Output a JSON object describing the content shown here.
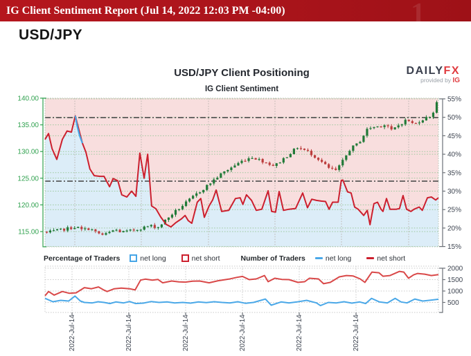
{
  "banner": {
    "title": "IG Client Sentiment Report (Jul 14, 2022 12:03 PM -04:00)",
    "watermark": "1",
    "bg_color": "#aa141b"
  },
  "instrument": "USD/JPY",
  "logo": {
    "daily": "DAILY",
    "fx": "FX",
    "provided_by": "provided by",
    "ig": "IG"
  },
  "legend": {
    "group1_label": "Percentage of Traders",
    "pct_net_long": "net long",
    "pct_net_short": "net short",
    "group2_label": "Number of Traders",
    "num_net_long": "net long",
    "num_net_short": "net short"
  },
  "colors": {
    "net_short": "#cc1f2d",
    "net_long": "#45a5e6",
    "pink_fill": "#f8dede",
    "blue_fill": "#dcedf8",
    "candle_up": "#217a38",
    "candle_down": "#bc3d3d",
    "grid_green": "#9bc89b",
    "grid_gray": "#c9c9c9",
    "vgrid": "#b9b3ad",
    "dashdot": "#4d4d4d",
    "left_axis": "#2fa14e",
    "axis_text": "#3d4450",
    "count_short": "#d94848",
    "count_long": "#4aa8e8"
  },
  "chart_data": {
    "main": {
      "type": "candlestick+line",
      "title": "USD/JPY Client Positioning",
      "subtitle": "IG Client Sentiment",
      "left_axis": {
        "labels": [
          "140.00",
          "135.00",
          "130.00",
          "125.00",
          "120.00",
          "115.00"
        ],
        "values": [
          140,
          135,
          130,
          125,
          120,
          115
        ]
      },
      "right_axis": {
        "labels": [
          "55%",
          "50%",
          "45%",
          "40%",
          "35%",
          "30%",
          "25%",
          "20%",
          "15%"
        ],
        "values": [
          55,
          50,
          45,
          40,
          35,
          30,
          25,
          20,
          15
        ]
      },
      "marker_lines_pct": [
        49.9,
        32.7
      ],
      "candle_count": 113,
      "price_anchors": [
        [
          0,
          114.8
        ],
        [
          0.03,
          115.2
        ],
        [
          0.055,
          115.6
        ],
        [
          0.076,
          115.9
        ],
        [
          0.09,
          115.3
        ],
        [
          0.11,
          115.6
        ],
        [
          0.125,
          114.9
        ],
        [
          0.145,
          114.3
        ],
        [
          0.16,
          114.8
        ],
        [
          0.175,
          115.4
        ],
        [
          0.19,
          114.9
        ],
        [
          0.205,
          115.0
        ],
        [
          0.225,
          115.3
        ],
        [
          0.245,
          115.7
        ],
        [
          0.265,
          116.1
        ],
        [
          0.285,
          115.8
        ],
        [
          0.3,
          116.8
        ],
        [
          0.32,
          118.2
        ],
        [
          0.349,
          119.9
        ],
        [
          0.38,
          121.8
        ],
        [
          0.408,
          123.4
        ],
        [
          0.44,
          125.4
        ],
        [
          0.466,
          126.7
        ],
        [
          0.5,
          128.2
        ],
        [
          0.525,
          129.0
        ],
        [
          0.554,
          128.2
        ],
        [
          0.584,
          127.3
        ],
        [
          0.613,
          129.0
        ],
        [
          0.643,
          130.8
        ],
        [
          0.672,
          129.9
        ],
        [
          0.7,
          128.4
        ],
        [
          0.722,
          126.9
        ],
        [
          0.743,
          126.4
        ],
        [
          0.76,
          128.3
        ],
        [
          0.778,
          130.5
        ],
        [
          0.8,
          131.6
        ],
        [
          0.824,
          134.4
        ],
        [
          0.849,
          134.7
        ],
        [
          0.871,
          135.1
        ],
        [
          0.884,
          133.9
        ],
        [
          0.907,
          135.2
        ],
        [
          0.924,
          136.0
        ],
        [
          0.942,
          135.0
        ],
        [
          0.959,
          135.9
        ],
        [
          0.977,
          136.4
        ],
        [
          0.989,
          137.0
        ],
        [
          1,
          139.0
        ]
      ],
      "net_short_pct": [
        [
          0,
          44.0
        ],
        [
          0.009,
          45.6
        ],
        [
          0.018,
          41.5
        ],
        [
          0.03,
          38.6
        ],
        [
          0.044,
          44.0
        ],
        [
          0.056,
          46.3
        ],
        [
          0.067,
          46.0
        ],
        [
          0.077,
          50.4
        ],
        [
          0.095,
          43.0
        ],
        [
          0.104,
          40.5
        ],
        [
          0.114,
          36.0
        ],
        [
          0.125,
          34.2
        ],
        [
          0.14,
          34.0
        ],
        [
          0.15,
          34.0
        ],
        [
          0.164,
          31.2
        ],
        [
          0.173,
          33.4
        ],
        [
          0.185,
          32.8
        ],
        [
          0.195,
          29.0
        ],
        [
          0.208,
          28.4
        ],
        [
          0.22,
          30.0
        ],
        [
          0.231,
          28.6
        ],
        [
          0.241,
          40.3
        ],
        [
          0.252,
          33.5
        ],
        [
          0.261,
          40.0
        ],
        [
          0.271,
          26.0
        ],
        [
          0.282,
          25.2
        ],
        [
          0.294,
          23.0
        ],
        [
          0.308,
          21.0
        ],
        [
          0.32,
          20.3
        ],
        [
          0.333,
          21.5
        ],
        [
          0.347,
          22.5
        ],
        [
          0.356,
          23.4
        ],
        [
          0.364,
          22.0
        ],
        [
          0.373,
          21.3
        ],
        [
          0.387,
          27.0
        ],
        [
          0.396,
          28.0
        ],
        [
          0.405,
          22.9
        ],
        [
          0.417,
          26.0
        ],
        [
          0.426,
          27.6
        ],
        [
          0.435,
          30.3
        ],
        [
          0.449,
          24.5
        ],
        [
          0.467,
          24.8
        ],
        [
          0.484,
          28.0
        ],
        [
          0.496,
          28.2
        ],
        [
          0.503,
          26.4
        ],
        [
          0.512,
          29.0
        ],
        [
          0.525,
          27.5
        ],
        [
          0.537,
          24.8
        ],
        [
          0.551,
          25.1
        ],
        [
          0.567,
          30.1
        ],
        [
          0.576,
          24.5
        ],
        [
          0.586,
          24.3
        ],
        [
          0.595,
          29.9
        ],
        [
          0.606,
          24.8
        ],
        [
          0.62,
          25.1
        ],
        [
          0.637,
          25.3
        ],
        [
          0.655,
          29.5
        ],
        [
          0.667,
          25.5
        ],
        [
          0.678,
          27.8
        ],
        [
          0.69,
          27.5
        ],
        [
          0.702,
          27.3
        ],
        [
          0.713,
          27.2
        ],
        [
          0.722,
          25.1
        ],
        [
          0.731,
          27.0
        ],
        [
          0.745,
          27.0
        ],
        [
          0.753,
          32.9
        ],
        [
          0.757,
          33.0
        ],
        [
          0.769,
          29.8
        ],
        [
          0.778,
          29.5
        ],
        [
          0.787,
          25.7
        ],
        [
          0.796,
          25.1
        ],
        [
          0.81,
          23.4
        ],
        [
          0.819,
          24.8
        ],
        [
          0.826,
          20.9
        ],
        [
          0.836,
          26.6
        ],
        [
          0.845,
          27.0
        ],
        [
          0.854,
          25.1
        ],
        [
          0.859,
          24.5
        ],
        [
          0.868,
          28.0
        ],
        [
          0.877,
          25.1
        ],
        [
          0.893,
          25.1
        ],
        [
          0.901,
          25.3
        ],
        [
          0.91,
          28.8
        ],
        [
          0.919,
          25.1
        ],
        [
          0.93,
          24.5
        ],
        [
          0.938,
          25.1
        ],
        [
          0.951,
          25.7
        ],
        [
          0.959,
          24.8
        ],
        [
          0.972,
          28.2
        ],
        [
          0.982,
          28.4
        ],
        [
          0.993,
          27.6
        ],
        [
          1,
          28.2
        ]
      ],
      "net_long_pct_segment": [
        [
          0.077,
          50.4
        ],
        [
          0.082,
          47.5
        ],
        [
          0.088,
          45.0
        ],
        [
          0.095,
          43.0
        ]
      ]
    },
    "traders": {
      "type": "line",
      "right_axis": {
        "labels": [
          "2000",
          "1500",
          "1000",
          "500"
        ],
        "values": [
          2000,
          1500,
          1000,
          500
        ]
      },
      "x_labels": [
        "2022-Jul-14",
        "2022-Jul-14",
        "2022-Jul-14",
        "2022-Jul-14",
        "2022-Jul-14",
        "2022-Jul-14"
      ],
      "net_short_count": [
        [
          0,
          790
        ],
        [
          0.009,
          980
        ],
        [
          0.023,
          820
        ],
        [
          0.044,
          980
        ],
        [
          0.062,
          900
        ],
        [
          0.079,
          920
        ],
        [
          0.1,
          1150
        ],
        [
          0.118,
          1100
        ],
        [
          0.136,
          1180
        ],
        [
          0.15,
          1040
        ],
        [
          0.158,
          980
        ],
        [
          0.176,
          1100
        ],
        [
          0.194,
          1130
        ],
        [
          0.215,
          1100
        ],
        [
          0.229,
          1050
        ],
        [
          0.243,
          1480
        ],
        [
          0.255,
          1520
        ],
        [
          0.273,
          1480
        ],
        [
          0.287,
          1510
        ],
        [
          0.299,
          1360
        ],
        [
          0.322,
          1440
        ],
        [
          0.34,
          1400
        ],
        [
          0.357,
          1390
        ],
        [
          0.375,
          1430
        ],
        [
          0.393,
          1440
        ],
        [
          0.417,
          1360
        ],
        [
          0.44,
          1450
        ],
        [
          0.467,
          1520
        ],
        [
          0.488,
          1600
        ],
        [
          0.502,
          1640
        ],
        [
          0.519,
          1500
        ],
        [
          0.537,
          1530
        ],
        [
          0.558,
          1680
        ],
        [
          0.567,
          1410
        ],
        [
          0.584,
          1560
        ],
        [
          0.602,
          1510
        ],
        [
          0.62,
          1500
        ],
        [
          0.643,
          1380
        ],
        [
          0.66,
          1410
        ],
        [
          0.672,
          1560
        ],
        [
          0.695,
          1530
        ],
        [
          0.708,
          1320
        ],
        [
          0.725,
          1380
        ],
        [
          0.748,
          1620
        ],
        [
          0.766,
          1680
        ],
        [
          0.783,
          1660
        ],
        [
          0.801,
          1530
        ],
        [
          0.813,
          1380
        ],
        [
          0.831,
          1830
        ],
        [
          0.849,
          1800
        ],
        [
          0.859,
          1650
        ],
        [
          0.877,
          1680
        ],
        [
          0.901,
          1860
        ],
        [
          0.912,
          1830
        ],
        [
          0.924,
          1560
        ],
        [
          0.937,
          1710
        ],
        [
          0.947,
          1770
        ],
        [
          0.965,
          1740
        ],
        [
          0.982,
          1680
        ],
        [
          1,
          1720
        ]
      ],
      "net_long_count": [
        [
          0,
          680
        ],
        [
          0.02,
          530
        ],
        [
          0.04,
          590
        ],
        [
          0.06,
          560
        ],
        [
          0.076,
          780
        ],
        [
          0.09,
          560
        ],
        [
          0.1,
          500
        ],
        [
          0.12,
          480
        ],
        [
          0.135,
          530
        ],
        [
          0.15,
          500
        ],
        [
          0.165,
          450
        ],
        [
          0.18,
          520
        ],
        [
          0.2,
          480
        ],
        [
          0.215,
          540
        ],
        [
          0.23,
          450
        ],
        [
          0.25,
          470
        ],
        [
          0.27,
          540
        ],
        [
          0.29,
          500
        ],
        [
          0.31,
          520
        ],
        [
          0.33,
          480
        ],
        [
          0.35,
          500
        ],
        [
          0.37,
          470
        ],
        [
          0.39,
          520
        ],
        [
          0.41,
          490
        ],
        [
          0.43,
          530
        ],
        [
          0.45,
          500
        ],
        [
          0.47,
          480
        ],
        [
          0.49,
          530
        ],
        [
          0.51,
          460
        ],
        [
          0.53,
          500
        ],
        [
          0.56,
          650
        ],
        [
          0.575,
          380
        ],
        [
          0.6,
          520
        ],
        [
          0.62,
          480
        ],
        [
          0.64,
          520
        ],
        [
          0.665,
          590
        ],
        [
          0.69,
          480
        ],
        [
          0.7,
          360
        ],
        [
          0.72,
          500
        ],
        [
          0.74,
          480
        ],
        [
          0.76,
          530
        ],
        [
          0.78,
          470
        ],
        [
          0.8,
          520
        ],
        [
          0.815,
          450
        ],
        [
          0.83,
          680
        ],
        [
          0.85,
          520
        ],
        [
          0.87,
          480
        ],
        [
          0.89,
          680
        ],
        [
          0.905,
          520
        ],
        [
          0.92,
          480
        ],
        [
          0.94,
          650
        ],
        [
          0.96,
          560
        ],
        [
          0.98,
          600
        ],
        [
          1,
          640
        ]
      ]
    }
  }
}
